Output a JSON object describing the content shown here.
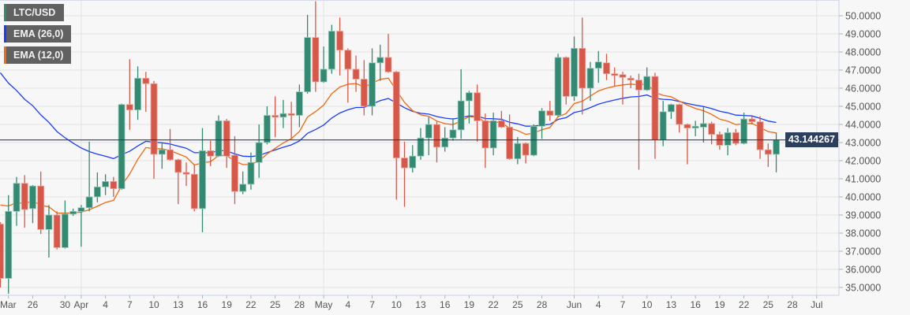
{
  "legend": [
    {
      "label": "LTC/USD",
      "color": "#338a72"
    },
    {
      "label": "EMA (26,0)",
      "color": "#1a3cff"
    },
    {
      "label": "EMA (12,0)",
      "color": "#f0680f"
    }
  ],
  "last_price": "43.144267",
  "colors": {
    "up": "#338a72",
    "down": "#d75849",
    "ema26": "#1a3cff",
    "ema12": "#f0680f",
    "price_line": "#2b3f5f"
  },
  "chart_data": {
    "type": "candlestick",
    "symbol": "LTC/USD",
    "ylim": [
      35,
      50
    ],
    "yticks": [
      "35.0000",
      "36.0000",
      "37.0000",
      "38.0000",
      "39.0000",
      "40.0000",
      "41.0000",
      "42.0000",
      "43.0000",
      "44.0000",
      "45.0000",
      "46.0000",
      "47.0000",
      "48.0000",
      "49.0000",
      "50.0000"
    ],
    "xticks": [
      {
        "text": "Mar",
        "date": "03-23"
      },
      {
        "text": "26",
        "date": "03-26"
      },
      {
        "text": "30",
        "date": "03-30"
      },
      {
        "text": "Apr",
        "date": "04-01"
      },
      {
        "text": "4",
        "date": "04-04"
      },
      {
        "text": "7",
        "date": "04-07"
      },
      {
        "text": "10",
        "date": "04-10"
      },
      {
        "text": "13",
        "date": "04-13"
      },
      {
        "text": "16",
        "date": "04-16"
      },
      {
        "text": "19",
        "date": "04-19"
      },
      {
        "text": "22",
        "date": "04-22"
      },
      {
        "text": "25",
        "date": "04-25"
      },
      {
        "text": "28",
        "date": "04-28"
      },
      {
        "text": "May",
        "date": "05-01"
      },
      {
        "text": "4",
        "date": "05-04"
      },
      {
        "text": "7",
        "date": "05-07"
      },
      {
        "text": "10",
        "date": "05-10"
      },
      {
        "text": "13",
        "date": "05-13"
      },
      {
        "text": "16",
        "date": "05-16"
      },
      {
        "text": "19",
        "date": "05-19"
      },
      {
        "text": "22",
        "date": "05-22"
      },
      {
        "text": "25",
        "date": "05-25"
      },
      {
        "text": "28",
        "date": "05-28"
      },
      {
        "text": "Jun",
        "date": "06-01"
      },
      {
        "text": "4",
        "date": "06-04"
      },
      {
        "text": "7",
        "date": "06-07"
      },
      {
        "text": "10",
        "date": "06-10"
      },
      {
        "text": "13",
        "date": "06-13"
      },
      {
        "text": "16",
        "date": "06-16"
      },
      {
        "text": "19",
        "date": "06-19"
      },
      {
        "text": "22",
        "date": "06-22"
      },
      {
        "text": "25",
        "date": "06-25"
      },
      {
        "text": "28",
        "date": "06-28"
      },
      {
        "text": "Jul",
        "date": "07-01"
      }
    ],
    "grid": true,
    "series_columns": [
      "date",
      "open",
      "high",
      "low",
      "close"
    ],
    "candles": [
      [
        "03-22",
        38.5,
        38.6,
        35.0,
        35.5
      ],
      [
        "03-23",
        35.5,
        40.1,
        34.65,
        39.2
      ],
      [
        "03-24",
        39.2,
        41.1,
        38.4,
        40.75
      ],
      [
        "03-25",
        40.75,
        41.2,
        38.3,
        39.3
      ],
      [
        "03-26",
        39.35,
        40.65,
        38.55,
        40.6
      ],
      [
        "03-27",
        40.6,
        41.4,
        37.95,
        38.2
      ],
      [
        "03-28",
        38.2,
        39.55,
        36.65,
        39.0
      ],
      [
        "03-29",
        39.0,
        39.2,
        37.1,
        37.2
      ],
      [
        "03-30",
        37.2,
        39.8,
        37.15,
        39.05
      ],
      [
        "03-31",
        39.05,
        39.35,
        38.95,
        39.2
      ],
      [
        "04-01",
        39.2,
        39.55,
        37.25,
        39.4
      ],
      [
        "04-02",
        39.4,
        43.05,
        39.2,
        40.0
      ],
      [
        "04-03",
        40.0,
        41.35,
        39.7,
        40.55
      ],
      [
        "04-04",
        40.55,
        41.25,
        40.1,
        40.85
      ],
      [
        "04-05",
        40.85,
        41.1,
        40.0,
        40.45
      ],
      [
        "04-06",
        40.45,
        45.15,
        40.4,
        45.1
      ],
      [
        "04-07",
        45.1,
        47.6,
        43.7,
        44.8
      ],
      [
        "04-08",
        44.8,
        47.2,
        44.25,
        46.55
      ],
      [
        "04-09",
        46.55,
        46.9,
        44.7,
        46.25
      ],
      [
        "04-10",
        46.25,
        46.4,
        41.0,
        42.35
      ],
      [
        "04-11",
        42.35,
        42.95,
        41.55,
        42.6
      ],
      [
        "04-12",
        42.6,
        43.75,
        42.0,
        42.05
      ],
      [
        "04-13",
        42.05,
        42.1,
        39.6,
        41.35
      ],
      [
        "04-14",
        41.35,
        41.9,
        40.6,
        41.25
      ],
      [
        "04-15",
        41.25,
        41.8,
        39.2,
        39.35
      ],
      [
        "04-16",
        39.35,
        43.8,
        38.05,
        42.55
      ],
      [
        "04-17",
        42.55,
        43.1,
        41.7,
        42.25
      ],
      [
        "04-18",
        42.25,
        44.5,
        42.2,
        44.2
      ],
      [
        "04-19",
        44.2,
        44.3,
        41.6,
        42.25
      ],
      [
        "04-20",
        42.3,
        43.35,
        39.6,
        40.3
      ],
      [
        "04-21",
        40.3,
        41.4,
        40.15,
        40.7
      ],
      [
        "04-22",
        40.7,
        42.45,
        40.4,
        41.9
      ],
      [
        "04-23",
        41.9,
        44.0,
        41.05,
        43.0
      ],
      [
        "04-24",
        43.0,
        45.0,
        42.9,
        44.5
      ],
      [
        "04-25",
        44.5,
        45.55,
        43.3,
        44.4
      ],
      [
        "04-26",
        44.4,
        45.35,
        43.8,
        44.6
      ],
      [
        "04-27",
        44.6,
        45.25,
        43.2,
        44.5
      ],
      [
        "04-28",
        44.5,
        46.2,
        43.85,
        45.8
      ],
      [
        "04-29",
        45.8,
        50.05,
        45.7,
        48.8
      ],
      [
        "04-30",
        48.8,
        50.8,
        45.8,
        46.35
      ],
      [
        "05-01",
        46.35,
        48.3,
        46.3,
        47.05
      ],
      [
        "05-02",
        47.05,
        49.5,
        46.8,
        49.15
      ],
      [
        "05-03",
        49.15,
        49.9,
        46.7,
        48.1
      ],
      [
        "05-04",
        48.1,
        48.2,
        45.2,
        47.05
      ],
      [
        "05-05",
        47.05,
        47.8,
        45.8,
        46.5
      ],
      [
        "05-06",
        46.5,
        47.55,
        44.5,
        45.0
      ],
      [
        "05-07",
        45.0,
        48.2,
        44.5,
        47.4
      ],
      [
        "05-08",
        47.4,
        48.4,
        46.4,
        47.7
      ],
      [
        "05-09",
        47.7,
        49.0,
        46.85,
        46.9
      ],
      [
        "05-10",
        46.9,
        46.95,
        39.85,
        42.15
      ],
      [
        "05-11",
        42.15,
        43.05,
        39.45,
        41.6
      ],
      [
        "05-12",
        41.6,
        42.85,
        41.35,
        42.25
      ],
      [
        "05-13",
        42.25,
        43.8,
        42.05,
        43.25
      ],
      [
        "05-14",
        43.25,
        44.4,
        42.3,
        44.0
      ],
      [
        "05-15",
        44.0,
        44.15,
        41.9,
        42.75
      ],
      [
        "05-16",
        42.75,
        43.85,
        42.5,
        43.25
      ],
      [
        "05-17",
        43.25,
        44.35,
        43.1,
        43.7
      ],
      [
        "05-18",
        43.7,
        47.05,
        43.2,
        45.3
      ],
      [
        "05-19",
        45.3,
        45.85,
        44.05,
        45.75
      ],
      [
        "05-20",
        45.75,
        46.2,
        43.05,
        44.2
      ],
      [
        "05-21",
        44.2,
        44.6,
        41.6,
        42.7
      ],
      [
        "05-22",
        42.7,
        44.65,
        42.3,
        44.2
      ],
      [
        "05-23",
        44.2,
        44.75,
        43.8,
        43.85
      ],
      [
        "05-24",
        43.85,
        44.55,
        42.05,
        42.1
      ],
      [
        "05-25",
        42.1,
        43.3,
        41.8,
        42.95
      ],
      [
        "05-26",
        42.95,
        43.0,
        41.85,
        42.3
      ],
      [
        "05-27",
        42.3,
        44.0,
        42.25,
        43.9
      ],
      [
        "05-28",
        43.9,
        44.9,
        43.2,
        44.75
      ],
      [
        "05-29",
        44.75,
        45.3,
        44.2,
        44.5
      ],
      [
        "05-30",
        44.5,
        47.9,
        44.45,
        47.7
      ],
      [
        "05-31",
        47.7,
        47.75,
        45.1,
        45.55
      ],
      [
        "06-01",
        45.55,
        48.85,
        45.3,
        48.2
      ],
      [
        "06-02",
        48.2,
        49.9,
        44.55,
        46.0
      ],
      [
        "06-03",
        46.0,
        47.45,
        45.3,
        47.1
      ],
      [
        "06-04",
        47.1,
        48.05,
        46.3,
        47.45
      ],
      [
        "06-05",
        47.4,
        47.9,
        46.45,
        46.8
      ],
      [
        "06-06",
        46.8,
        47.15,
        46.1,
        46.7
      ],
      [
        "06-07",
        46.75,
        46.9,
        45.1,
        46.6
      ],
      [
        "06-08",
        46.55,
        46.7,
        46.0,
        46.45
      ],
      [
        "06-09",
        46.45,
        46.8,
        41.5,
        45.9
      ],
      [
        "06-10",
        45.9,
        47.15,
        45.85,
        46.65
      ],
      [
        "06-11",
        46.65,
        46.85,
        42.1,
        43.15
      ],
      [
        "06-12",
        43.15,
        45.3,
        42.8,
        44.7
      ],
      [
        "06-13",
        44.7,
        45.15,
        44.3,
        45.1
      ],
      [
        "06-14",
        45.1,
        45.15,
        43.55,
        44.0
      ],
      [
        "06-15",
        44.0,
        44.05,
        41.8,
        43.8
      ],
      [
        "06-16",
        43.8,
        44.2,
        43.35,
        43.9
      ],
      [
        "06-17",
        43.85,
        44.95,
        43.0,
        44.05
      ],
      [
        "06-18",
        44.05,
        44.15,
        42.9,
        43.45
      ],
      [
        "06-19",
        43.45,
        43.6,
        42.6,
        42.85
      ],
      [
        "06-20",
        42.85,
        43.8,
        42.3,
        43.55
      ],
      [
        "06-21",
        43.55,
        43.75,
        42.85,
        42.95
      ],
      [
        "06-22",
        42.95,
        44.65,
        42.9,
        44.3
      ],
      [
        "06-23",
        44.3,
        44.45,
        44.0,
        44.15
      ],
      [
        "06-24",
        44.15,
        44.45,
        42.1,
        42.6
      ],
      [
        "06-25",
        42.6,
        42.95,
        41.65,
        42.35
      ],
      [
        "06-26",
        42.35,
        43.55,
        41.35,
        43.144267
      ]
    ],
    "indicators": [
      {
        "name": "EMA (26,0)",
        "period": 26
      },
      {
        "name": "EMA (12,0)",
        "period": 12
      }
    ]
  }
}
